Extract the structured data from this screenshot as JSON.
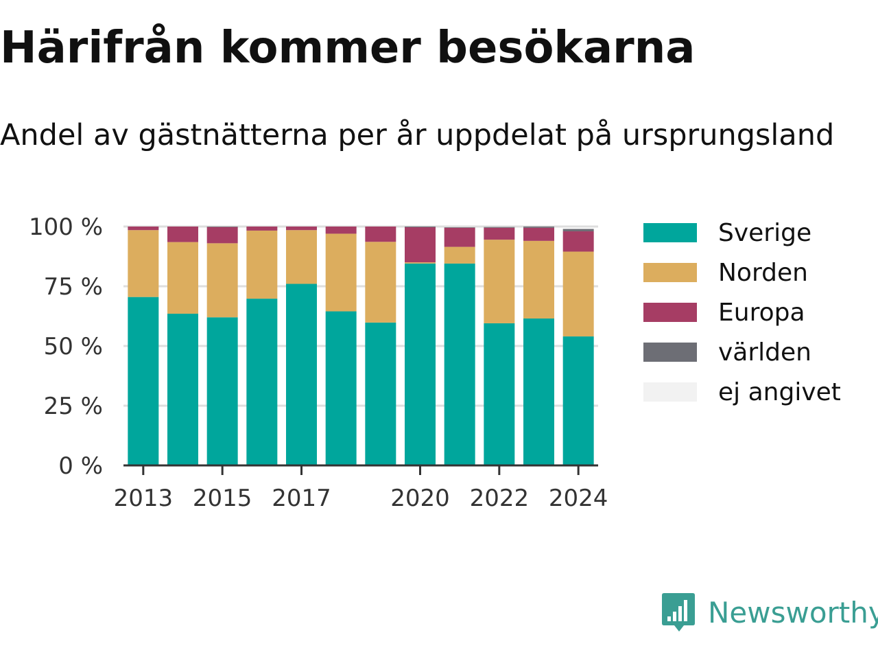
{
  "title": "Härifrån kommer besökarna",
  "subtitle": "Andel av gästnätterna per år uppdelat på ursprungsland",
  "brand": {
    "name": "Newsworthy",
    "icon": "newsworthy-logo-icon",
    "color": "#3a9e93"
  },
  "chart_data": {
    "type": "bar",
    "stacked": true,
    "categories": [
      2013,
      2014,
      2015,
      2016,
      2017,
      2018,
      2019,
      2020,
      2021,
      2022,
      2023,
      2024
    ],
    "x_tick_labels": [
      "2013",
      "2015",
      "2017",
      "2020",
      "2022",
      "2024"
    ],
    "y_ticks": [
      0,
      25,
      50,
      75,
      100
    ],
    "y_tick_labels": [
      "0 %",
      "25 %",
      "50 %",
      "75 %",
      "100 %"
    ],
    "ylim": [
      0,
      100
    ],
    "xlabel": "",
    "ylabel": "",
    "grid": "horizontal",
    "legend_position": "right",
    "series": [
      {
        "name": "Sverige",
        "color": "#00a69c",
        "values": [
          70.5,
          63.5,
          62,
          69.8,
          76,
          64.5,
          59.8,
          84.5,
          84.5,
          59.5,
          61.5,
          54
        ]
      },
      {
        "name": "Norden",
        "color": "#dcad5e",
        "values": [
          28,
          30,
          31,
          28.5,
          22.5,
          32.5,
          33.8,
          0.5,
          7,
          35,
          32.5,
          35.5
        ]
      },
      {
        "name": "Europa",
        "color": "#a63d64",
        "values": [
          1.5,
          6.5,
          6.8,
          1.7,
          1.5,
          3,
          6.4,
          14.7,
          8,
          5,
          5.5,
          8.5
        ]
      },
      {
        "name": "världen",
        "color": "#6d6e75",
        "values": [
          0,
          0,
          0.2,
          0,
          0,
          0,
          0,
          0.3,
          0.2,
          0.3,
          0.5,
          1
        ]
      },
      {
        "name": "ej angivet",
        "color": "#f2f2f2",
        "values": [
          0,
          0,
          0,
          0,
          0,
          0,
          0,
          0,
          0,
          0,
          0,
          0
        ]
      }
    ]
  }
}
